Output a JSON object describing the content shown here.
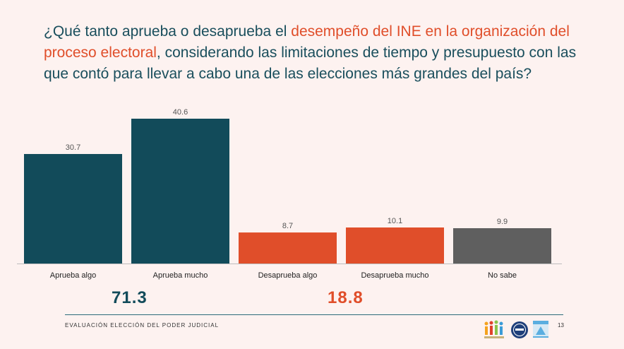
{
  "question": {
    "part1": "¿Qué tanto aprueba o desaprueba el ",
    "highlight": "desempeño del INE en la organización del proceso electoral",
    "part2": ", considerando las limitaciones de tiempo y presupuesto con las que contó para llevar a cabo una de las elecciones más grandes del país?"
  },
  "colors": {
    "approve": "#124b5a",
    "disapprove": "#e04e2a",
    "unknown": "#5f5f5f",
    "title": "#194e5c",
    "highlight": "#e04e2a"
  },
  "chart_data": {
    "type": "bar",
    "categories": [
      "Aprueba algo",
      "Aprueba mucho",
      "Desaprueba algo",
      "Desaprueba mucho",
      "No sabe"
    ],
    "values": [
      30.7,
      40.6,
      8.7,
      10.1,
      9.9
    ],
    "value_labels": [
      "30.7",
      "40.6",
      "8.7",
      "10.1",
      "9.9"
    ],
    "bar_colors": [
      "#124b5a",
      "#124b5a",
      "#e04e2a",
      "#e04e2a",
      "#5f5f5f"
    ],
    "ylim": [
      0,
      40.6
    ],
    "grid": false,
    "title": "",
    "xlabel": "",
    "ylabel": ""
  },
  "totals": {
    "approve": "71.3",
    "disapprove": "18.8"
  },
  "footer": {
    "text": "EVALUACIÓN ELECCIÓN DEL PODER JUDICIAL",
    "page_number": "13"
  }
}
